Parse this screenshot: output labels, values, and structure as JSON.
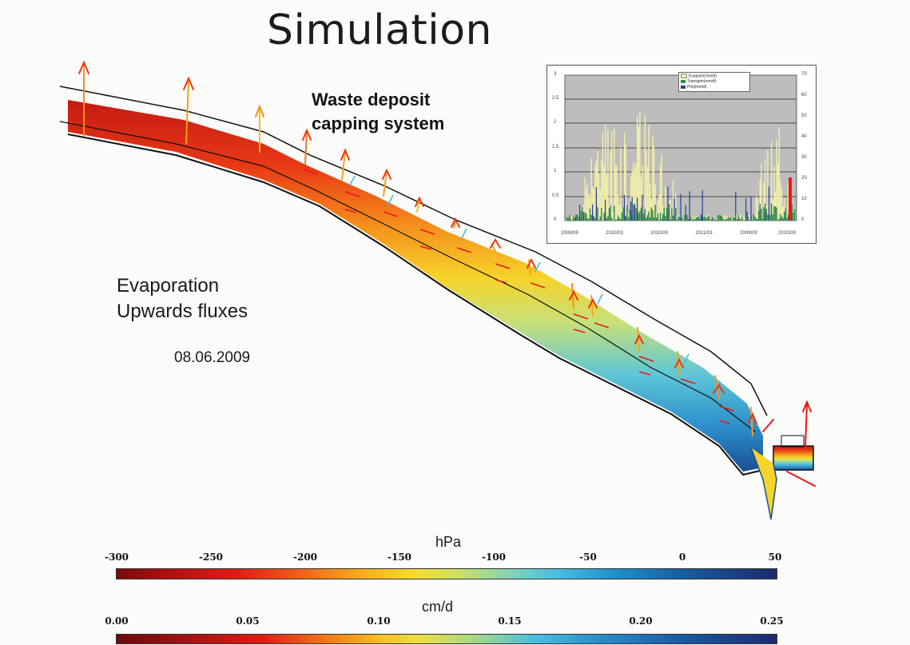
{
  "title": "Simulation",
  "caption": {
    "line1": "Waste deposit",
    "line2": "capping system"
  },
  "legend_text": {
    "line1": "Evaporation",
    "line2": "Upwards fluxes"
  },
  "date": "08.06.2009",
  "colorbar_pressure": {
    "unit": "hPa",
    "ticks": [
      "-300",
      "-250",
      "-200",
      "-150",
      "-100",
      "-50",
      "0",
      "50"
    ]
  },
  "colorbar_flux": {
    "unit": "cm/d",
    "ticks": [
      "0.00",
      "0.05",
      "0.10",
      "0.15",
      "0.20",
      "0.25"
    ]
  },
  "inset": {
    "legend": [
      "Evapsim(mm/d)",
      "Transpim(mm/d)",
      "Pim(mm/d)"
    ],
    "legend_colors": [
      "#f2f0a8",
      "#2e8b4a",
      "#2b3f9a"
    ],
    "left_ticks": [
      "3",
      "2.5",
      "2",
      "1.5",
      "1",
      "0.5",
      "0"
    ],
    "right_ticks": [
      "70",
      "60",
      "50",
      "40",
      "30",
      "20",
      "10",
      "0"
    ],
    "x_ticks": [
      "2009/09",
      "2010/03",
      "2010/09",
      "2011/03",
      "2009/09",
      "2010/09"
    ]
  },
  "colors": {
    "hot": "#e01b14",
    "warm": "#f6a51c",
    "cool": "#47bde3",
    "deep": "#1e2a6e",
    "arrow": "#e8191c"
  }
}
